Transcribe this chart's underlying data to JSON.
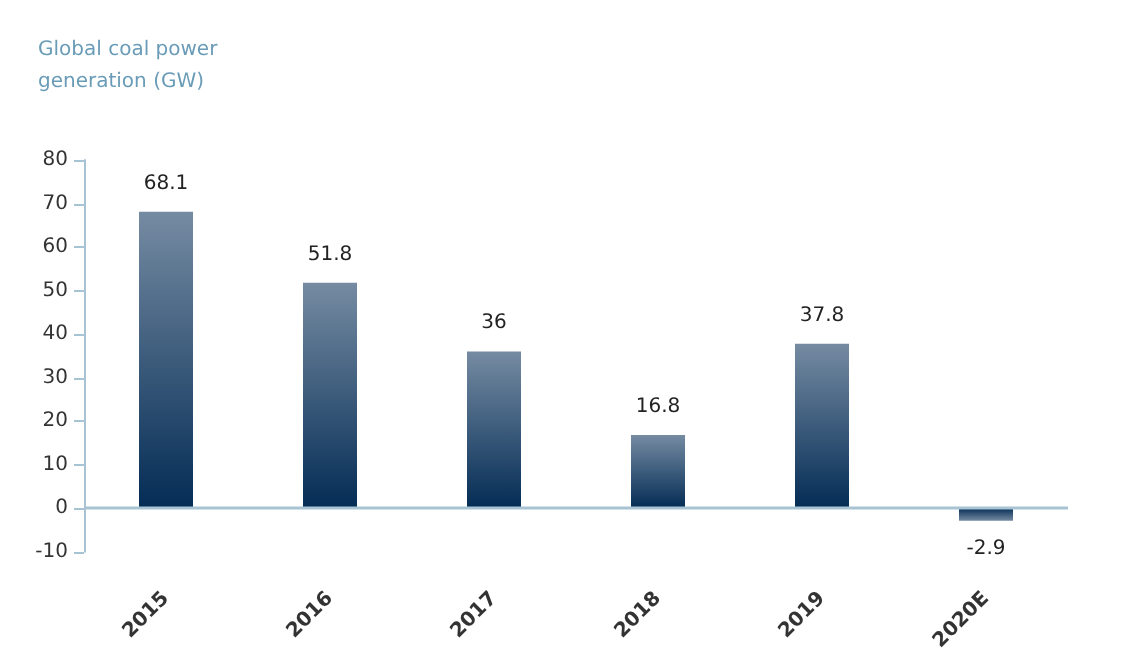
{
  "chart_data": {
    "type": "bar",
    "ylabel": "Global coal power generation (GW)",
    "categories": [
      "2015",
      "2016",
      "2017",
      "2018",
      "2019",
      "2020E"
    ],
    "values": [
      68.1,
      51.8,
      36,
      16.8,
      37.8,
      -2.9
    ],
    "color": "#042c55",
    "ylim": [
      -10,
      80
    ],
    "yticks": [
      -10,
      0,
      10,
      20,
      30,
      40,
      50,
      60,
      70,
      80
    ],
    "data_labels": true,
    "grid": false,
    "ref_lines": [
      {
        "axis": "y",
        "value": 0,
        "color": "#a8c4d4"
      }
    ]
  }
}
